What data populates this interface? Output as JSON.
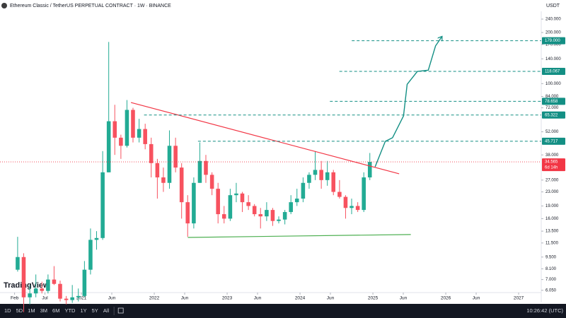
{
  "header": {
    "title": "Ethereum Classic / TetherUS PERPETUAL CONTRACT · 1W · BINANCE",
    "currency": "USDT"
  },
  "logo": "TradingView",
  "toolbar": {
    "ranges": [
      "1D",
      "5D",
      "1M",
      "3M",
      "6M",
      "YTD",
      "1Y",
      "5Y",
      "All"
    ],
    "clock": "10:26:42 (UTC)"
  },
  "chart_data": {
    "type": "candlestick",
    "log_scale": true,
    "up_color": "#22ab94",
    "down_color": "#f7525f",
    "x": [
      2020.125,
      2020.208,
      2020.292,
      2020.375,
      2020.458,
      2020.542,
      2020.625,
      2020.708,
      2020.792,
      2020.875,
      2020.958,
      2021.042,
      2021.125,
      2021.208,
      2021.292,
      2021.375,
      2021.458,
      2021.542,
      2021.625,
      2021.708,
      2021.792,
      2021.875,
      2021.958,
      2022.042,
      2022.125,
      2022.208,
      2022.292,
      2022.375,
      2022.458,
      2022.542,
      2022.625,
      2022.708,
      2022.792,
      2022.875,
      2022.958,
      2023.042,
      2023.125,
      2023.208,
      2023.292,
      2023.375,
      2023.458,
      2023.542,
      2023.625,
      2023.708,
      2023.792,
      2023.875,
      2023.958,
      2024.042,
      2024.125,
      2024.208,
      2024.292,
      2024.375,
      2024.458,
      2024.542,
      2024.625,
      2024.708,
      2024.792,
      2024.875,
      2024.958
    ],
    "open": [
      8,
      9.5,
      5.5,
      5.8,
      6.2,
      6,
      7,
      6.6,
      5.4,
      5.3,
      5.5,
      5.6,
      8,
      12,
      12.3,
      30,
      60,
      48,
      43,
      70,
      48,
      54,
      44,
      34,
      28,
      26,
      43,
      32,
      20,
      15,
      26,
      35,
      29,
      24,
      17,
      16,
      22,
      22.5,
      20,
      19,
      17,
      16.5,
      18,
      15.5,
      15.8,
      17.5,
      20,
      21,
      26,
      29,
      31,
      27,
      30,
      23,
      21.5,
      18.5,
      19,
      18,
      28
    ],
    "high": [
      12.5,
      10,
      6.5,
      7.5,
      6.8,
      7.5,
      8.4,
      6.9,
      5.6,
      6.5,
      6.2,
      9,
      14,
      13.5,
      40,
      176,
      75,
      50,
      80,
      72,
      62,
      58,
      48,
      36,
      32,
      53,
      48,
      34,
      22,
      28,
      45,
      38,
      30,
      26,
      19,
      24,
      26,
      23,
      22,
      19.5,
      18.5,
      20,
      18.5,
      16.5,
      18,
      22,
      24,
      28,
      30,
      40,
      35,
      35,
      31,
      27,
      22,
      21,
      20,
      30,
      39
    ],
    "low": [
      7.8,
      4.5,
      5,
      5.5,
      5.8,
      5.8,
      6.5,
      5.2,
      5,
      5.1,
      5.2,
      5.5,
      7.5,
      10.5,
      12,
      30,
      38,
      36,
      42,
      45,
      45,
      41,
      28,
      21,
      23,
      24,
      30,
      16,
      12.5,
      14,
      26,
      26,
      22,
      15,
      15,
      15.5,
      20,
      17.5,
      18,
      16.5,
      14,
      15.5,
      14.5,
      15,
      14.8,
      17,
      19,
      20,
      24,
      27,
      24,
      25,
      22,
      21,
      16,
      17,
      17.5,
      17.5,
      27
    ],
    "close": [
      9.5,
      5.5,
      5.8,
      6.2,
      6,
      7,
      6.6,
      5.4,
      5.3,
      5.5,
      5.6,
      8,
      12,
      12.3,
      30,
      60,
      48,
      43,
      70,
      48,
      54,
      44,
      34,
      28,
      26,
      43,
      32,
      20,
      15,
      26,
      35,
      29,
      24,
      17,
      16,
      22,
      22.5,
      20,
      19,
      17,
      16.5,
      18,
      15.5,
      15.8,
      17.5,
      20,
      21,
      26,
      29,
      31,
      27,
      30,
      23,
      21.5,
      18.5,
      19,
      18,
      28,
      34.565
    ],
    "xlim": [
      2019.883,
      2027.31
    ],
    "xticks": [
      {
        "value": 2020.083,
        "label": "Feb"
      },
      {
        "value": 2020.5,
        "label": "Jul"
      },
      {
        "value": 2021,
        "label": "2021"
      },
      {
        "value": 2021.417,
        "label": "Jun"
      },
      {
        "value": 2022,
        "label": "2022"
      },
      {
        "value": 2022.417,
        "label": "Jun"
      },
      {
        "value": 2023,
        "label": "2023"
      },
      {
        "value": 2023.417,
        "label": "Jun"
      },
      {
        "value": 2024,
        "label": "2024"
      },
      {
        "value": 2024.417,
        "label": "Jun"
      },
      {
        "value": 2025,
        "label": "2025"
      },
      {
        "value": 2025.417,
        "label": "Jun"
      },
      {
        "value": 2026,
        "label": "2026"
      },
      {
        "value": 2026.417,
        "label": "Jun"
      },
      {
        "value": 2027,
        "label": "2027"
      }
    ],
    "ylim": [
      5.13,
      311
    ],
    "yticks": [
      {
        "value": 240,
        "label": "240.000"
      },
      {
        "value": 200,
        "label": "200.000"
      },
      {
        "value": 170,
        "label": "170.000"
      },
      {
        "value": 140,
        "label": "140.000"
      },
      {
        "value": 100,
        "label": "100.000"
      },
      {
        "value": 84,
        "label": "84.000"
      },
      {
        "value": 72,
        "label": "72.000"
      },
      {
        "value": 52,
        "label": "52.000"
      },
      {
        "value": 38,
        "label": "38.000"
      },
      {
        "value": 27,
        "label": "27.000"
      },
      {
        "value": 23,
        "label": "23.000"
      },
      {
        "value": 19,
        "label": "19.000"
      },
      {
        "value": 16,
        "label": "16.000"
      },
      {
        "value": 13.5,
        "label": "13.500"
      },
      {
        "value": 11.5,
        "label": "11.500"
      },
      {
        "value": 9.5,
        "label": "9.500"
      },
      {
        "value": 8.1,
        "label": "8.100"
      },
      {
        "value": 7,
        "label": "7.000"
      },
      {
        "value": 6.05,
        "label": "6.050"
      }
    ],
    "levels": [
      {
        "value": {
          "value": 179,
          "label": "179.000"
        },
        "start": 2024.71
      },
      {
        "value": 118.067,
        "start": 2024.54
      },
      {
        "value": 78.658,
        "start": 2024.41
      },
      {
        "value": 65.322,
        "start": 2021.86
      },
      {
        "value": 45.717,
        "start": 2022.6
      }
    ],
    "level_color": "#138f84",
    "current_price": 34.565,
    "countdown": "6d 14h",
    "current_color": "#f23645",
    "trendlines": [
      {
        "color": "#f23645",
        "x": [
          2021.68,
          2025.36
        ],
        "values": [
          77.4,
          29.4
        ]
      },
      {
        "color": "#4caf50",
        "x": [
          2022.46,
          2025.52
        ],
        "values": [
          12.4,
          12.9
        ]
      }
    ],
    "projection": {
      "color": "#138f84",
      "x": [
        2025.03,
        2025.17,
        2025.27,
        2025.42,
        2025.47,
        2025.61,
        2025.76,
        2025.86,
        2025.95
      ],
      "values": [
        32.3,
        45.7,
        48,
        64.5,
        99,
        118,
        120,
        167,
        190
      ]
    }
  }
}
